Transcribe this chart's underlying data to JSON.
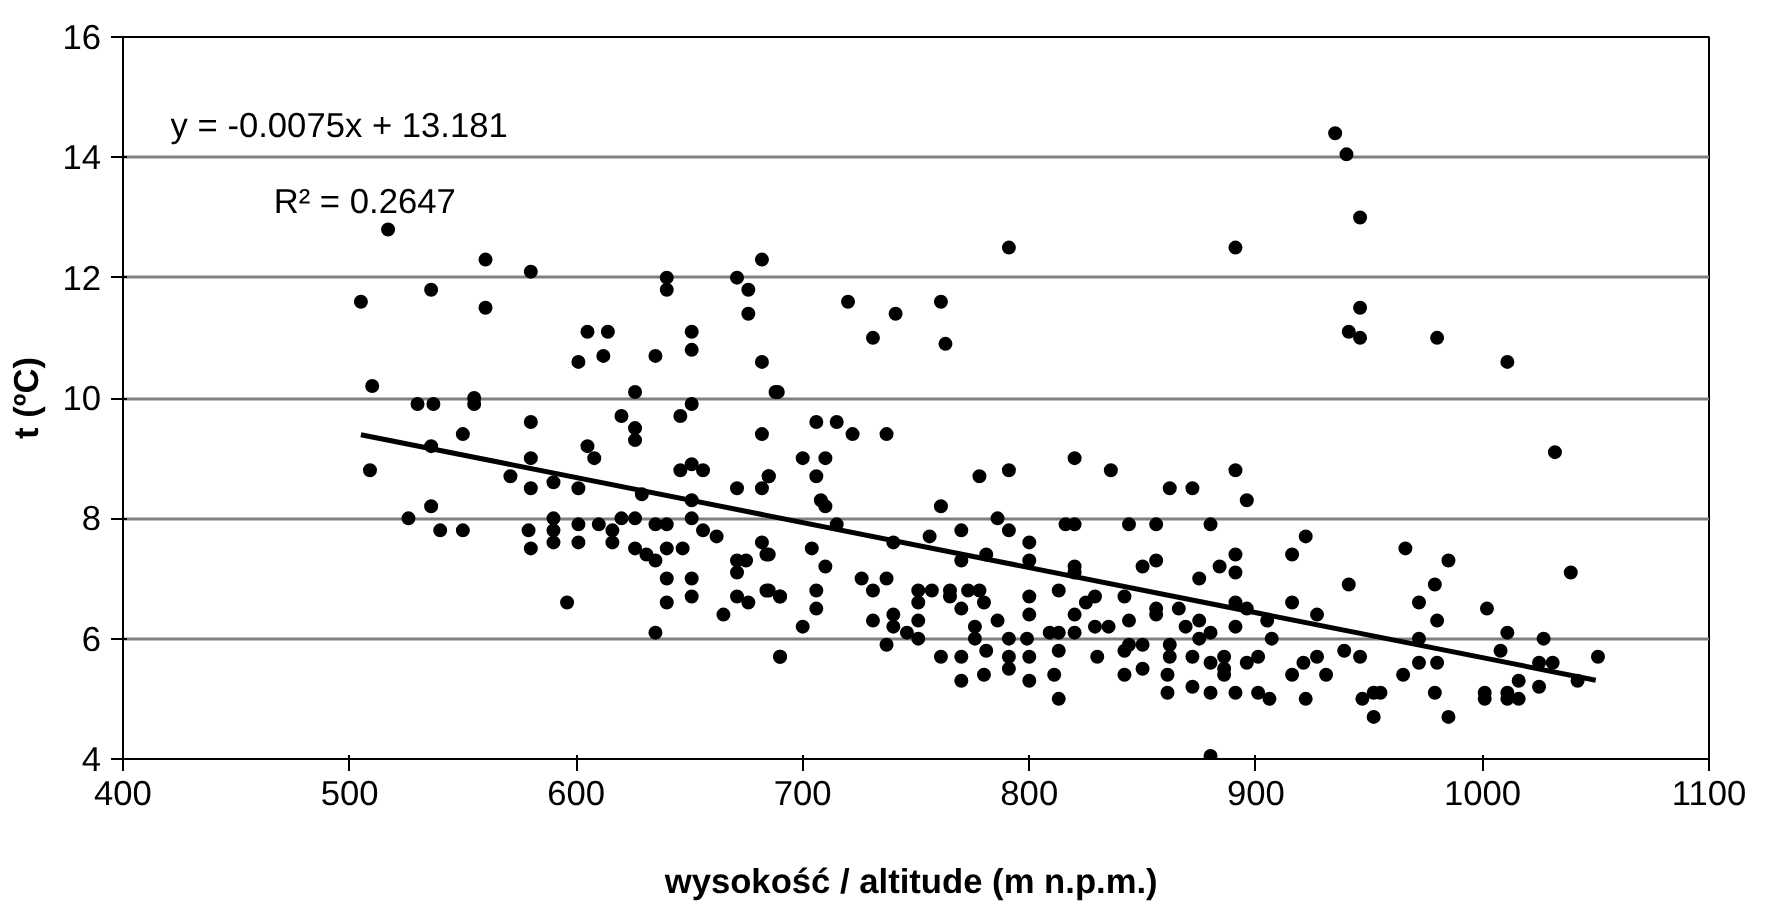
{
  "chart_data": {
    "type": "scatter",
    "xlabel": "wysokość / altitude  (m n.p.m.)",
    "ylabel": "t (ºC)",
    "xlim": [
      400,
      1100
    ],
    "xticks": [
      400,
      500,
      600,
      700,
      800,
      900,
      1000,
      1100
    ],
    "ylim": [
      4,
      16
    ],
    "yticks": [
      4,
      6,
      8,
      10,
      12,
      14,
      16
    ],
    "grid": "y",
    "annotations": [
      "y = -0.0075x + 13.181",
      "R² = 0.2647"
    ],
    "series": [
      {
        "marker": "circle",
        "color": "#000000",
        "x": [
          505,
          517,
          510,
          509,
          536,
          537,
          530,
          536,
          526,
          536,
          540,
          550,
          550,
          555,
          555,
          560,
          560,
          580,
          580,
          580,
          571,
          580,
          590,
          579,
          580,
          590,
          590,
          590,
          596,
          601,
          605,
          612,
          614,
          601,
          605,
          608,
          601,
          601,
          610,
          616,
          616,
          620,
          626,
          626,
          626,
          620,
          626,
          629,
          626,
          631,
          635,
          635,
          635,
          640,
          640,
          640,
          640,
          635,
          640,
          640,
          651,
          651,
          646,
          651,
          646,
          651,
          656,
          651,
          651,
          656,
          662,
          647,
          651,
          651,
          665,
          671,
          676,
          676,
          682,
          682,
          689,
          682,
          685,
          682,
          671,
          682,
          685,
          671,
          675,
          671,
          671,
          676,
          685,
          690,
          690,
          791,
          720,
          731,
          741,
          761,
          763,
          688,
          706,
          715,
          722,
          737,
          700,
          710,
          706,
          685,
          708,
          710,
          715,
          778,
          791,
          820,
          836,
          862,
          872,
          761,
          786,
          791,
          816,
          820,
          844,
          856,
          880,
          756,
          770,
          740,
          704,
          684,
          710,
          770,
          781,
          800,
          800,
          820,
          850,
          856,
          726,
          737,
          875,
          706,
          731,
          751,
          757,
          765,
          773,
          778,
          684,
          690,
          751,
          765,
          780,
          800,
          813,
          829,
          825,
          842,
          856,
          866,
          706,
          740,
          751,
          731,
          770,
          786,
          800,
          820,
          829,
          835,
          844,
          856,
          869,
          875,
          700,
          740,
          746,
          776,
          751,
          813,
          820,
          809,
          791,
          799,
          776,
          862,
          844,
          850,
          875,
          880,
          737,
          690,
          761,
          770,
          781,
          791,
          800,
          813,
          830,
          842,
          862,
          872,
          880,
          886,
          770,
          780,
          791,
          800,
          811,
          842,
          850,
          861,
          861,
          872,
          880,
          813,
          880,
          820,
          884,
          891,
          946,
          946,
          941,
          946,
          980,
          1011,
          1032,
          891,
          896,
          922,
          916,
          891,
          891,
          966,
          985,
          941,
          979,
          1039,
          916,
          972,
          980,
          1002,
          927,
          905,
          891,
          896,
          891,
          907,
          1011,
          1027,
          939,
          946,
          972,
          972,
          980,
          1008,
          1025,
          1031,
          1051,
          927,
          921,
          886,
          896,
          901,
          886,
          916,
          931,
          965,
          1016,
          1042,
          1025,
          891,
          901,
          906,
          922,
          947,
          952,
          955,
          979,
          1001,
          1001,
          1011,
          1011,
          1016,
          952,
          985,
          935,
          940
        ],
        "values": [
          11.6,
          12.8,
          10.2,
          8.8,
          11.8,
          9.9,
          9.9,
          9.2,
          8.0,
          8.2,
          7.8,
          7.8,
          9.4,
          10.0,
          9.9,
          12.3,
          11.5,
          12.1,
          9.6,
          9.0,
          8.7,
          8.5,
          8.6,
          7.8,
          7.5,
          8.0,
          7.8,
          7.6,
          6.6,
          10.6,
          11.1,
          10.7,
          11.1,
          8.5,
          9.2,
          9.0,
          7.9,
          7.6,
          7.9,
          7.8,
          7.6,
          9.7,
          10.1,
          9.5,
          9.3,
          8.0,
          8.0,
          8.4,
          7.5,
          7.4,
          10.7,
          7.9,
          7.3,
          7.9,
          7.5,
          7.0,
          6.6,
          6.1,
          12.0,
          11.8,
          11.1,
          10.8,
          9.7,
          9.9,
          8.8,
          8.9,
          8.8,
          8.3,
          8.0,
          7.8,
          7.7,
          7.5,
          7.0,
          6.7,
          6.4,
          12.0,
          11.8,
          11.4,
          12.3,
          10.6,
          10.1,
          9.4,
          8.7,
          8.5,
          8.5,
          7.6,
          7.4,
          7.3,
          7.3,
          7.1,
          6.7,
          6.6,
          6.8,
          6.7,
          5.7,
          12.5,
          11.6,
          11.0,
          11.4,
          11.6,
          10.9,
          10.1,
          9.6,
          9.6,
          9.4,
          9.4,
          9.0,
          9.0,
          8.7,
          8.7,
          8.3,
          8.2,
          7.9,
          8.7,
          8.8,
          9.0,
          8.8,
          8.5,
          8.5,
          8.2,
          8.0,
          7.8,
          7.9,
          7.9,
          7.9,
          7.9,
          7.9,
          7.7,
          7.8,
          7.6,
          7.5,
          7.4,
          7.2,
          7.3,
          7.4,
          7.6,
          7.3,
          7.2,
          7.2,
          7.3,
          7.0,
          7.0,
          7.0,
          6.8,
          6.8,
          6.8,
          6.8,
          6.8,
          6.8,
          6.8,
          6.8,
          6.7,
          6.6,
          6.7,
          6.6,
          6.7,
          6.8,
          6.7,
          6.6,
          6.7,
          6.5,
          6.5,
          6.5,
          6.4,
          6.3,
          6.3,
          6.5,
          6.3,
          6.4,
          6.4,
          6.2,
          6.2,
          6.3,
          6.4,
          6.2,
          6.3,
          6.2,
          6.2,
          6.1,
          6.2,
          6.0,
          6.1,
          6.1,
          6.1,
          6.0,
          6.0,
          6.0,
          5.9,
          5.9,
          5.9,
          6.0,
          6.1,
          5.9,
          5.7,
          5.7,
          5.7,
          5.8,
          5.7,
          5.7,
          5.8,
          5.7,
          5.8,
          5.7,
          5.7,
          5.6,
          5.5,
          5.3,
          5.4,
          5.5,
          5.3,
          5.4,
          5.4,
          5.5,
          5.4,
          5.1,
          5.2,
          5.1,
          5.0,
          4.05,
          7.1,
          7.2,
          12.5,
          13.0,
          11.5,
          11.1,
          11.0,
          11.0,
          10.6,
          9.1,
          8.8,
          8.3,
          7.7,
          7.4,
          7.4,
          7.1,
          7.5,
          7.3,
          6.9,
          6.9,
          7.1,
          6.6,
          6.6,
          6.3,
          6.5,
          6.4,
          6.3,
          6.6,
          6.5,
          6.2,
          6.0,
          6.1,
          6.0,
          5.8,
          5.7,
          6.0,
          5.6,
          5.6,
          5.8,
          5.6,
          5.6,
          5.7,
          5.7,
          5.6,
          5.7,
          5.6,
          5.7,
          5.4,
          5.4,
          5.4,
          5.4,
          5.3,
          5.3,
          5.2,
          5.1,
          5.1,
          5.0,
          5.0,
          5.0,
          5.1,
          5.1,
          5.1,
          5.1,
          5.0,
          5.1,
          5.0,
          5.0,
          4.7,
          4.7,
          14.4,
          14.05
        ]
      },
      {
        "type": "line",
        "color": "#000000",
        "x": [
          505,
          1050
        ],
        "values": [
          9.39,
          5.31
        ]
      }
    ]
  }
}
